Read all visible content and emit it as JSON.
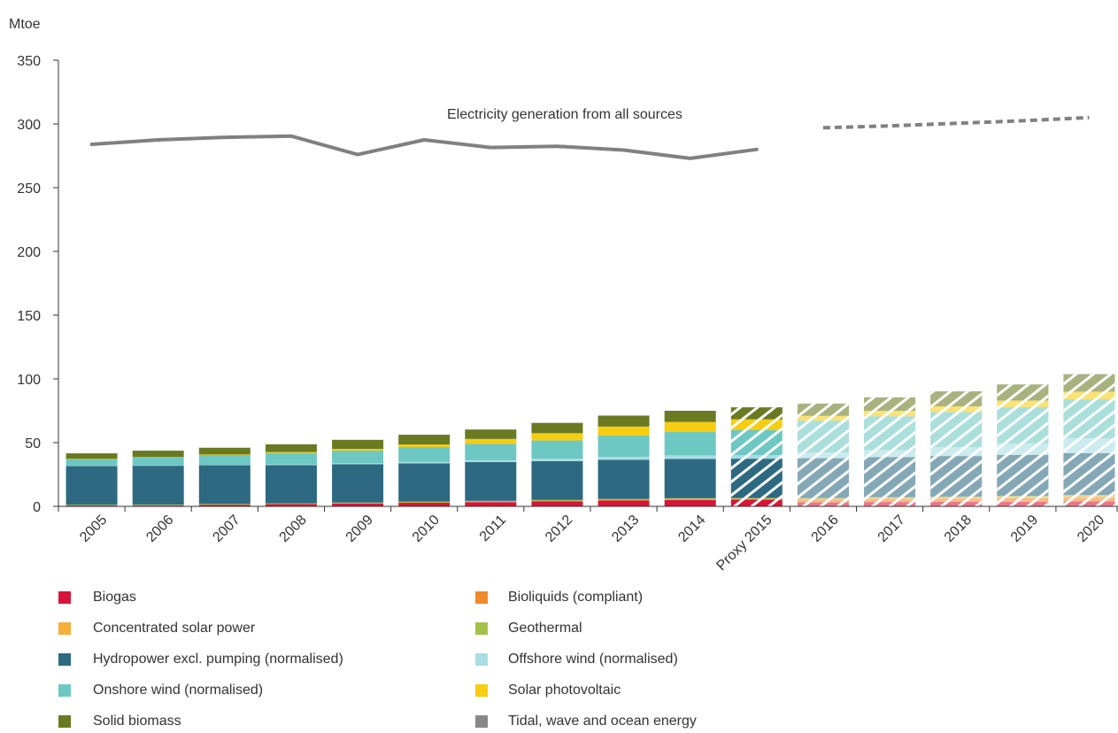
{
  "chart_data": {
    "type": "bar",
    "stacked": true,
    "ylabel": "Mtoe",
    "ylim": [
      0,
      350
    ],
    "yticks": [
      0,
      50,
      100,
      150,
      200,
      250,
      300,
      350
    ],
    "grid": false,
    "legend_position": "bottom",
    "categories": [
      "2005",
      "2006",
      "2007",
      "2008",
      "2009",
      "2010",
      "2011",
      "2012",
      "2013",
      "2014",
      "Proxy 2015",
      "2016",
      "2017",
      "2018",
      "2019",
      "2020"
    ],
    "projected_categories": [
      "Proxy 2015",
      "2016",
      "2017",
      "2018",
      "2019",
      "2020"
    ],
    "series": [
      {
        "name": "Biogas",
        "color": "#d7153a",
        "values": [
          0.7,
          0.8,
          1.3,
          1.8,
          2.2,
          2.8,
          3.3,
          4.0,
          4.5,
          5.0,
          5.2,
          3.2,
          3.4,
          3.5,
          3.6,
          3.8
        ]
      },
      {
        "name": "Bioliquids (compliant)",
        "color": "#f18a2c",
        "values": [
          0.0,
          0.0,
          0.0,
          0.0,
          0.2,
          0.3,
          0.4,
          0.4,
          0.4,
          0.5,
          0.5,
          2.0,
          2.3,
          2.5,
          2.7,
          2.9
        ]
      },
      {
        "name": "Concentrated solar power",
        "color": "#f7ae3a",
        "values": [
          0,
          0,
          0,
          0,
          0,
          0,
          0,
          0,
          0.3,
          0.3,
          0.3,
          0.7,
          0.8,
          0.9,
          1.1,
          1.4
        ]
      },
      {
        "name": "Geothermal",
        "color": "#a3c14a",
        "values": [
          0.6,
          0.6,
          0.6,
          0.6,
          0.6,
          0.6,
          0.6,
          0.6,
          0.6,
          0.6,
          0.6,
          0.7,
          0.7,
          0.8,
          0.8,
          0.9
        ]
      },
      {
        "name": "Hydropower excl. pumping (normalised)",
        "color": "#2d6a82",
        "values": [
          30.5,
          30.5,
          30.4,
          30.0,
          30.0,
          30.0,
          30.5,
          30.5,
          30.8,
          30.8,
          30.8,
          31.2,
          31.5,
          31.8,
          32.2,
          32.7
        ]
      },
      {
        "name": "Offshore wind (normalised)",
        "color": "#a8dde3",
        "values": [
          0.2,
          0.3,
          0.4,
          0.5,
          0.8,
          1.1,
          1.4,
          1.8,
          2.3,
          2.8,
          2.8,
          4.5,
          5.5,
          7.0,
          9.0,
          11.8
        ]
      },
      {
        "name": "Onshore wind (normalised)",
        "color": "#6dc8c3",
        "values": [
          5.2,
          6.3,
          7.6,
          9.0,
          10.0,
          11.7,
          12.8,
          14.4,
          16.6,
          18.3,
          19.8,
          25.0,
          26.5,
          27.5,
          28.5,
          30.5
        ]
      },
      {
        "name": "Solar photovoltaic",
        "color": "#f6cd10",
        "values": [
          0.1,
          0.2,
          0.4,
          0.7,
          1.3,
          2.0,
          3.9,
          5.7,
          7.1,
          7.9,
          8.3,
          3.7,
          4.3,
          4.5,
          5.1,
          6.0
        ]
      },
      {
        "name": "Solid biomass",
        "color": "#6a7a23",
        "values": [
          4.3,
          5.0,
          5.3,
          6.1,
          7.1,
          7.7,
          7.4,
          8.1,
          8.6,
          8.8,
          9.4,
          9.6,
          10.5,
          11.7,
          12.6,
          13.6
        ]
      },
      {
        "name": "Tidal, wave and ocean energy",
        "color": "#888888",
        "values": [
          0,
          0,
          0,
          0,
          0,
          0,
          0,
          0,
          0,
          0,
          0,
          0,
          0,
          0,
          0,
          0.1
        ]
      }
    ],
    "line_series": [
      {
        "name": "Electricity generation from all sources",
        "color": "#808080",
        "x": [
          "2005",
          "2006",
          "2007",
          "2008",
          "2009",
          "2010",
          "2011",
          "2012",
          "2013",
          "2014",
          "Proxy 2015"
        ],
        "values": [
          284,
          287.5,
          289.5,
          290.5,
          276,
          287.5,
          281.5,
          282.5,
          279.5,
          273,
          280
        ]
      },
      {
        "name": "Electricity generation from all sources (projected)",
        "style": "dashed",
        "color": "#808080",
        "x": [
          "2016",
          "2017",
          "2018",
          "2019",
          "2020"
        ],
        "values": [
          297,
          298.5,
          300.5,
          302.5,
          305
        ]
      }
    ],
    "annotations": [
      {
        "text": "Electricity generation from all sources"
      }
    ]
  }
}
